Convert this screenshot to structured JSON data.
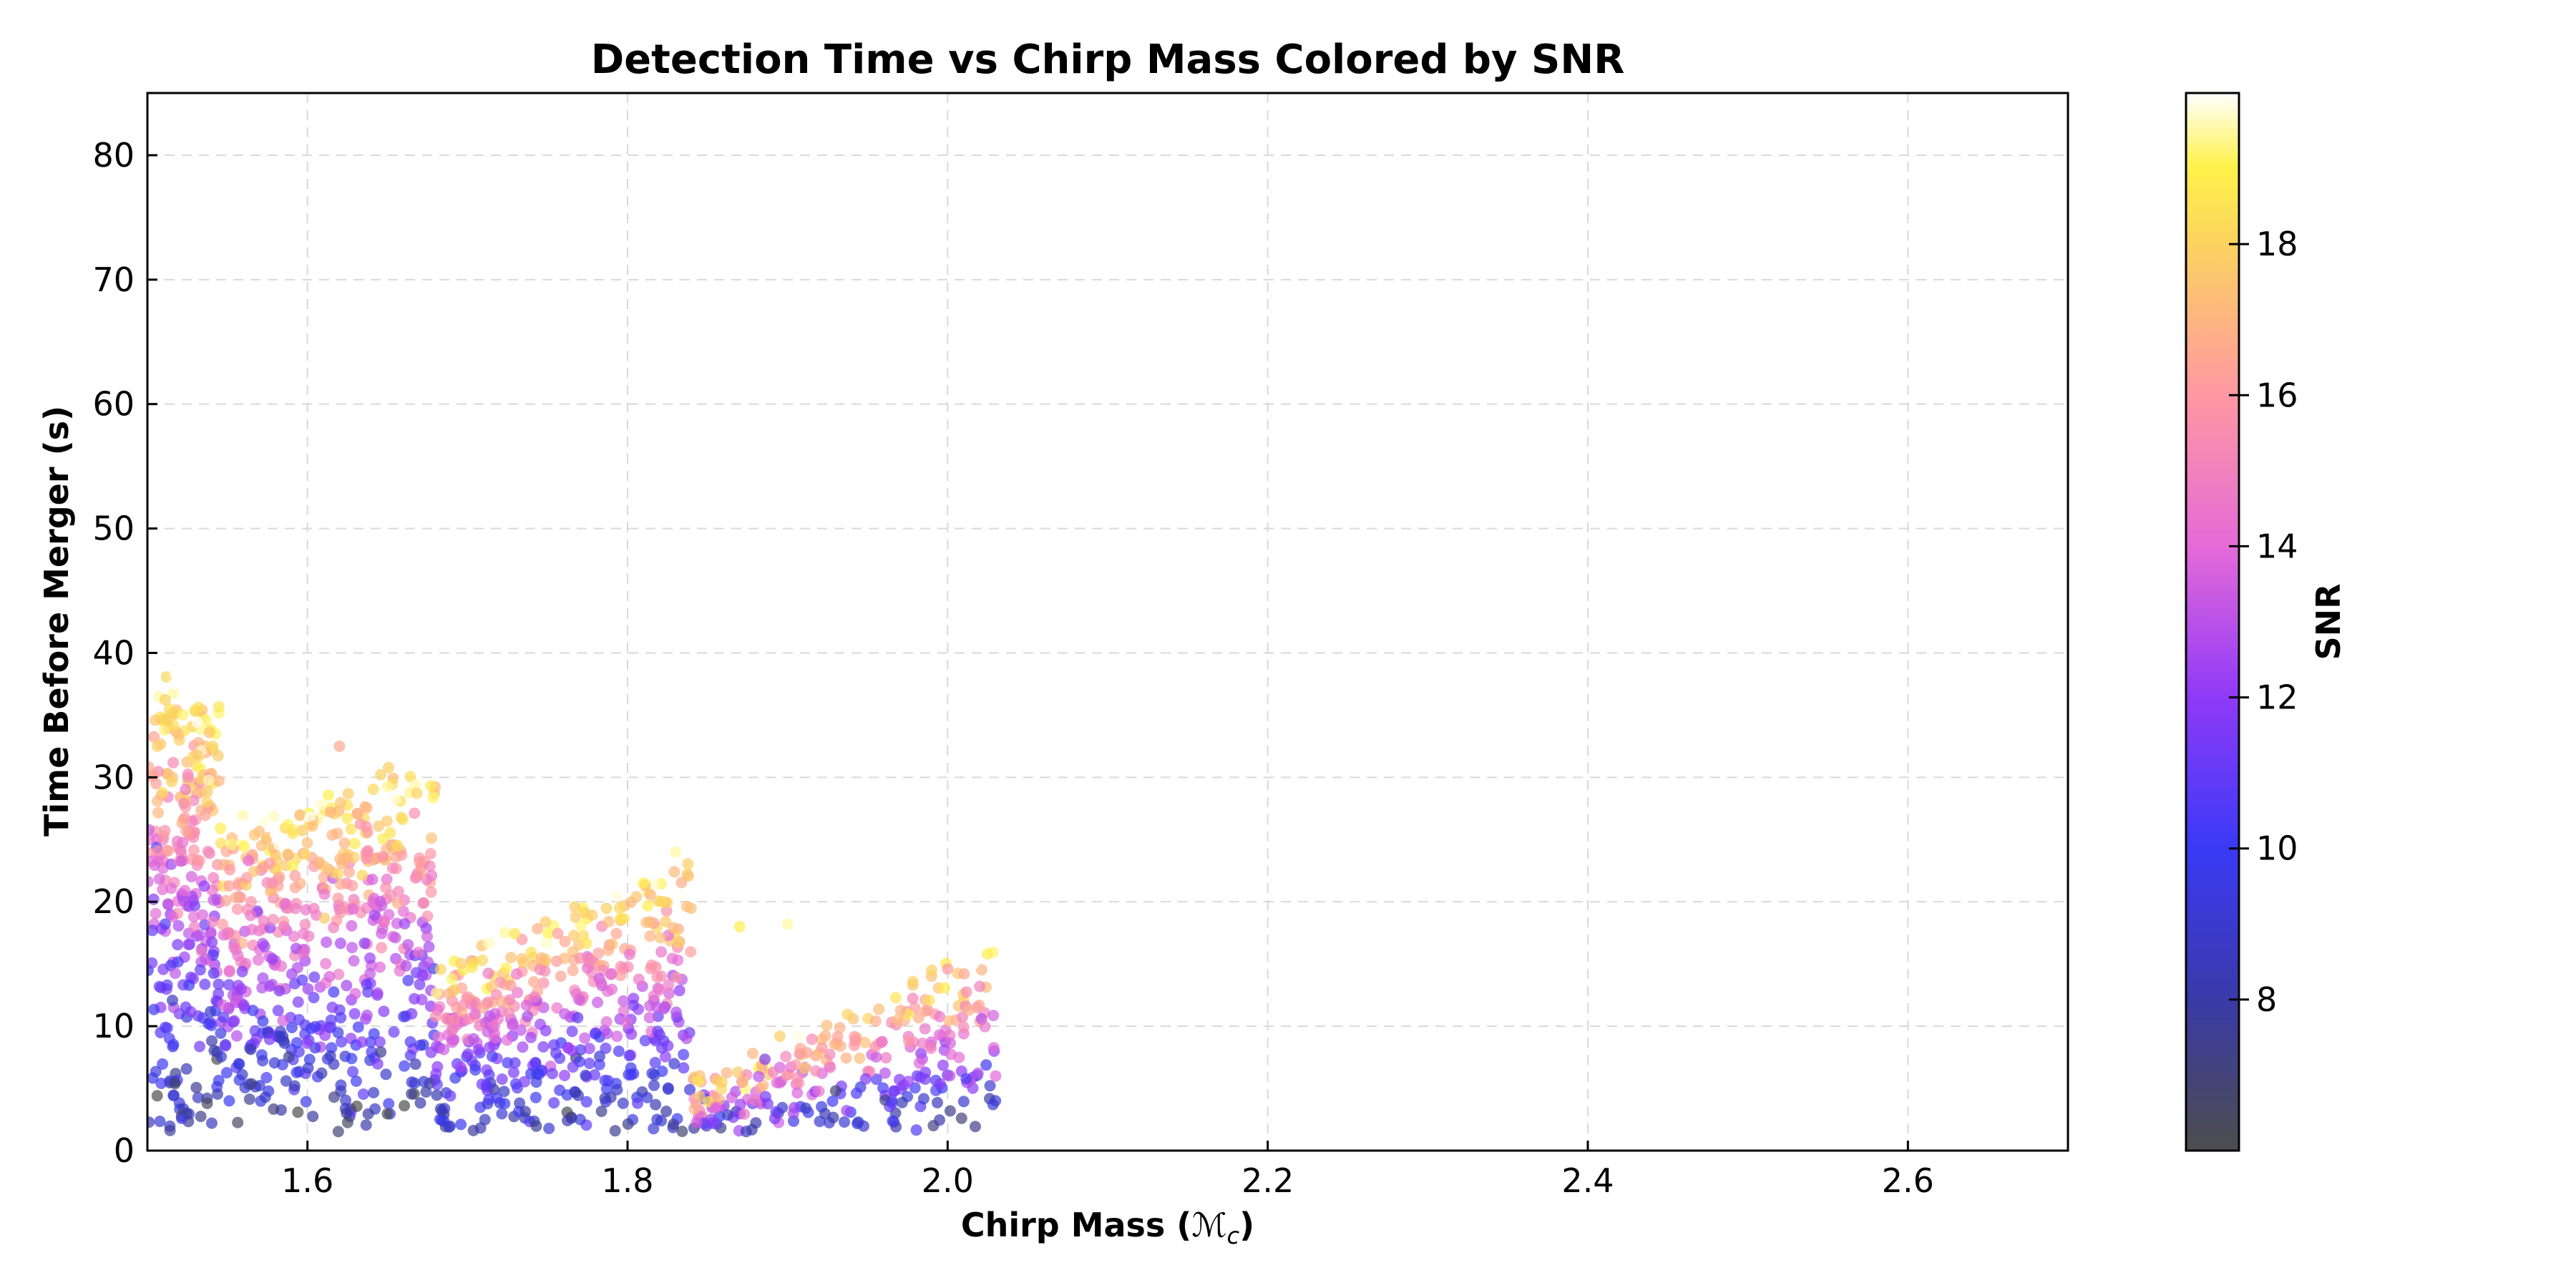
{
  "chart_data": {
    "type": "scatter",
    "title": "Detection Time vs Chirp Mass Colored by SNR",
    "xlabel": "Chirp Mass (",
    "xlabel_symbol": "ℳ",
    "xlabel_sub": "c",
    "xlabel_end": ")",
    "ylabel": "Time Before Merger (s)",
    "colorbar_label": "SNR",
    "xlim": [
      1.5,
      2.7
    ],
    "ylim": [
      0,
      85
    ],
    "xticks": [
      "1.6",
      "1.8",
      "2.0",
      "2.2",
      "2.4",
      "2.6"
    ],
    "yticks": [
      "0",
      "10",
      "20",
      "30",
      "40",
      "50",
      "60",
      "70",
      "80"
    ],
    "colorbar_range": [
      6,
      20
    ],
    "colorbar_ticks": [
      "8",
      "10",
      "12",
      "14",
      "16",
      "18"
    ],
    "colormap": "gnuplot2",
    "grid": true,
    "marker_alpha": 0.7,
    "point_count": 1600,
    "clusters": [
      {
        "x_range": [
          1.5,
          1.545
        ],
        "y_range": [
          2,
          38.5
        ],
        "snr_trend": "higher time → higher SNR"
      },
      {
        "x_range": [
          1.545,
          1.68
        ],
        "y_range": [
          1.5,
          32
        ],
        "snr_trend": "higher time → higher SNR"
      },
      {
        "x_range": [
          1.68,
          1.84
        ],
        "y_range": [
          2,
          24
        ],
        "snr_trend": "higher time → higher SNR"
      },
      {
        "x_range": [
          1.84,
          2.03
        ],
        "y_range": [
          1.5,
          18.5
        ],
        "snr_trend": "higher time → higher SNR"
      }
    ]
  }
}
